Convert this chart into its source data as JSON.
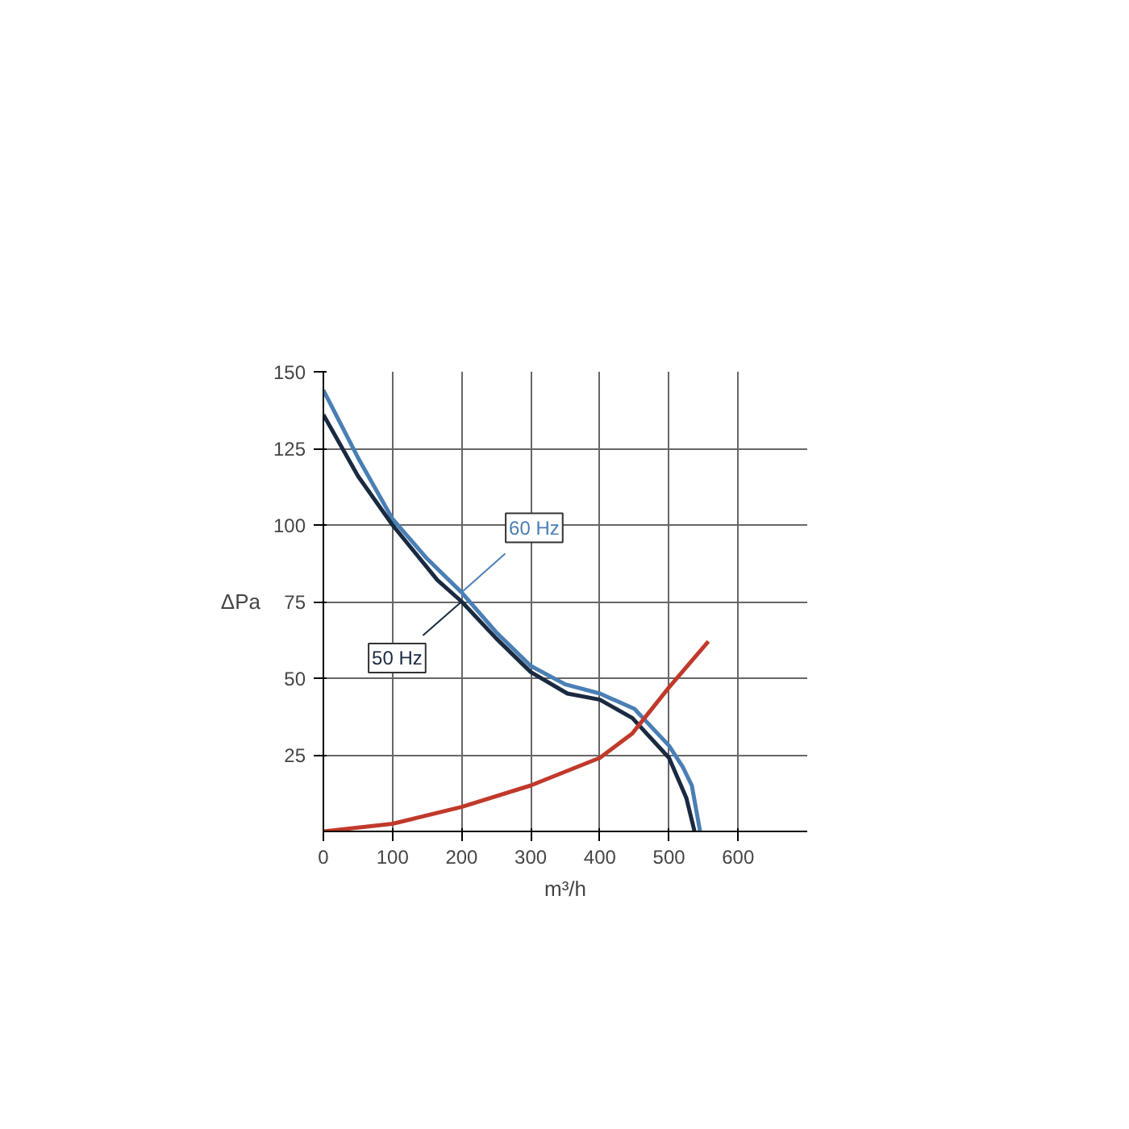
{
  "chart_data": {
    "type": "line",
    "xlabel": "m³/h",
    "ylabel": "ΔPa",
    "xlim": [
      0,
      700
    ],
    "ylim": [
      0,
      150
    ],
    "xticks": [
      0,
      100,
      200,
      300,
      400,
      500,
      600
    ],
    "yticks": [
      25,
      50,
      75,
      100,
      125,
      150
    ],
    "grid": true,
    "line_style": "solid",
    "series": [
      {
        "name": "60 Hz",
        "color": "#4a7fb5",
        "x": [
          0,
          50,
          100,
          150,
          200,
          250,
          300,
          350,
          400,
          450,
          500,
          520,
          533,
          545
        ],
        "values": [
          144,
          122,
          102,
          89,
          78,
          65,
          54,
          48,
          45,
          40,
          28,
          21,
          15,
          0
        ]
      },
      {
        "name": "50 Hz",
        "color": "#1a2a40",
        "x": [
          0,
          50,
          100,
          165,
          200,
          250,
          300,
          353,
          400,
          447,
          500,
          525,
          537
        ],
        "values": [
          136,
          116,
          100,
          82,
          75,
          63,
          52,
          45,
          43,
          37,
          24,
          11,
          0
        ]
      },
      {
        "color": "#c0392b",
        "x": [
          0,
          100,
          200,
          300,
          400,
          447,
          500,
          557
        ],
        "values": [
          0,
          2.5,
          8,
          15,
          24,
          32,
          47,
          62
        ]
      }
    ]
  }
}
